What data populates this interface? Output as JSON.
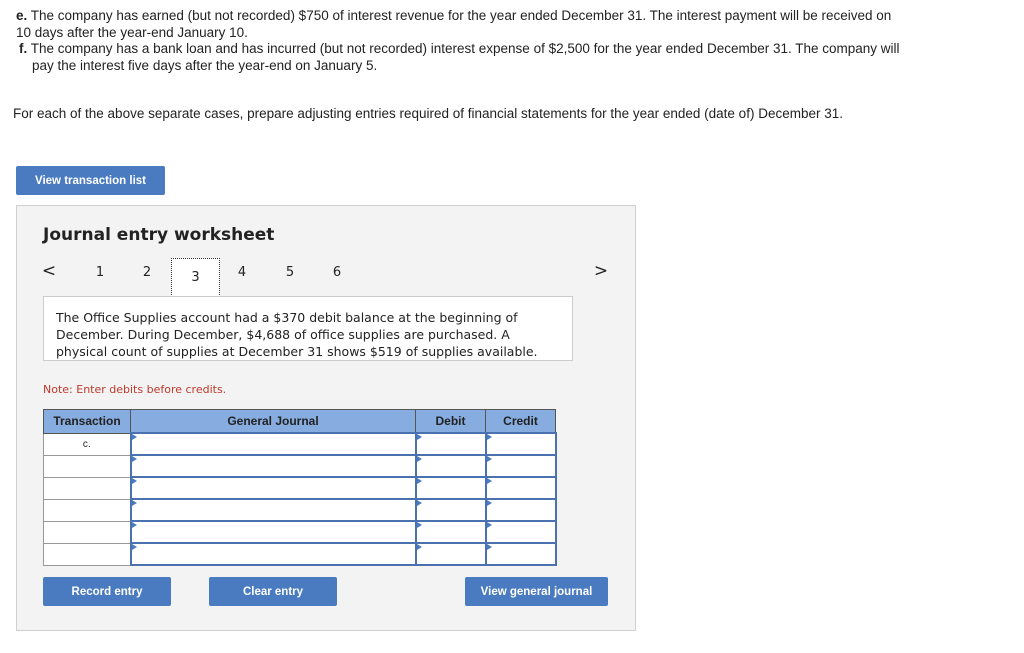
{
  "problem": {
    "items": [
      {
        "letter": "e.",
        "text": "The company has earned (but not recorded) $750 of interest revenue for the year ended December 31. The interest payment will be received on 10 days after the year-end January 10."
      },
      {
        "letter": "f.",
        "text": "The company has a bank loan and has incurred (but not recorded) interest expense of $2,500 for the year ended December 31. The company will pay the interest five days after the year-end on January 5."
      }
    ],
    "instruction": "For each of the above separate cases, prepare adjusting entries required of financial statements for the year ended (date of) December 31."
  },
  "view_transaction_list": "View transaction list",
  "worksheet": {
    "title": "Journal entry worksheet",
    "pages": [
      "1",
      "2",
      "3",
      "4",
      "5",
      "6"
    ],
    "selected_page": "3",
    "prev_icon": "chevron-left-icon",
    "next_icon": "chevron-right-icon",
    "description": "The Office Supplies account had a $370 debit balance at the beginning of December. During December, $4,688 of office supplies are purchased. A physical count of supplies at December 31 shows $519 of supplies available.",
    "note": "Note: Enter debits before credits.",
    "columns": [
      "Transaction",
      "General Journal",
      "Debit",
      "Credit"
    ],
    "rows": [
      {
        "transaction": "c."
      },
      {
        "transaction": ""
      },
      {
        "transaction": ""
      },
      {
        "transaction": ""
      },
      {
        "transaction": ""
      },
      {
        "transaction": ""
      }
    ],
    "record_entry": "Record entry",
    "clear_entry": "Clear entry",
    "view_general_journal": "View general journal"
  },
  "colors": {
    "button": "#4a7bc1",
    "header": "#87acdf",
    "note": "#c0392b"
  }
}
